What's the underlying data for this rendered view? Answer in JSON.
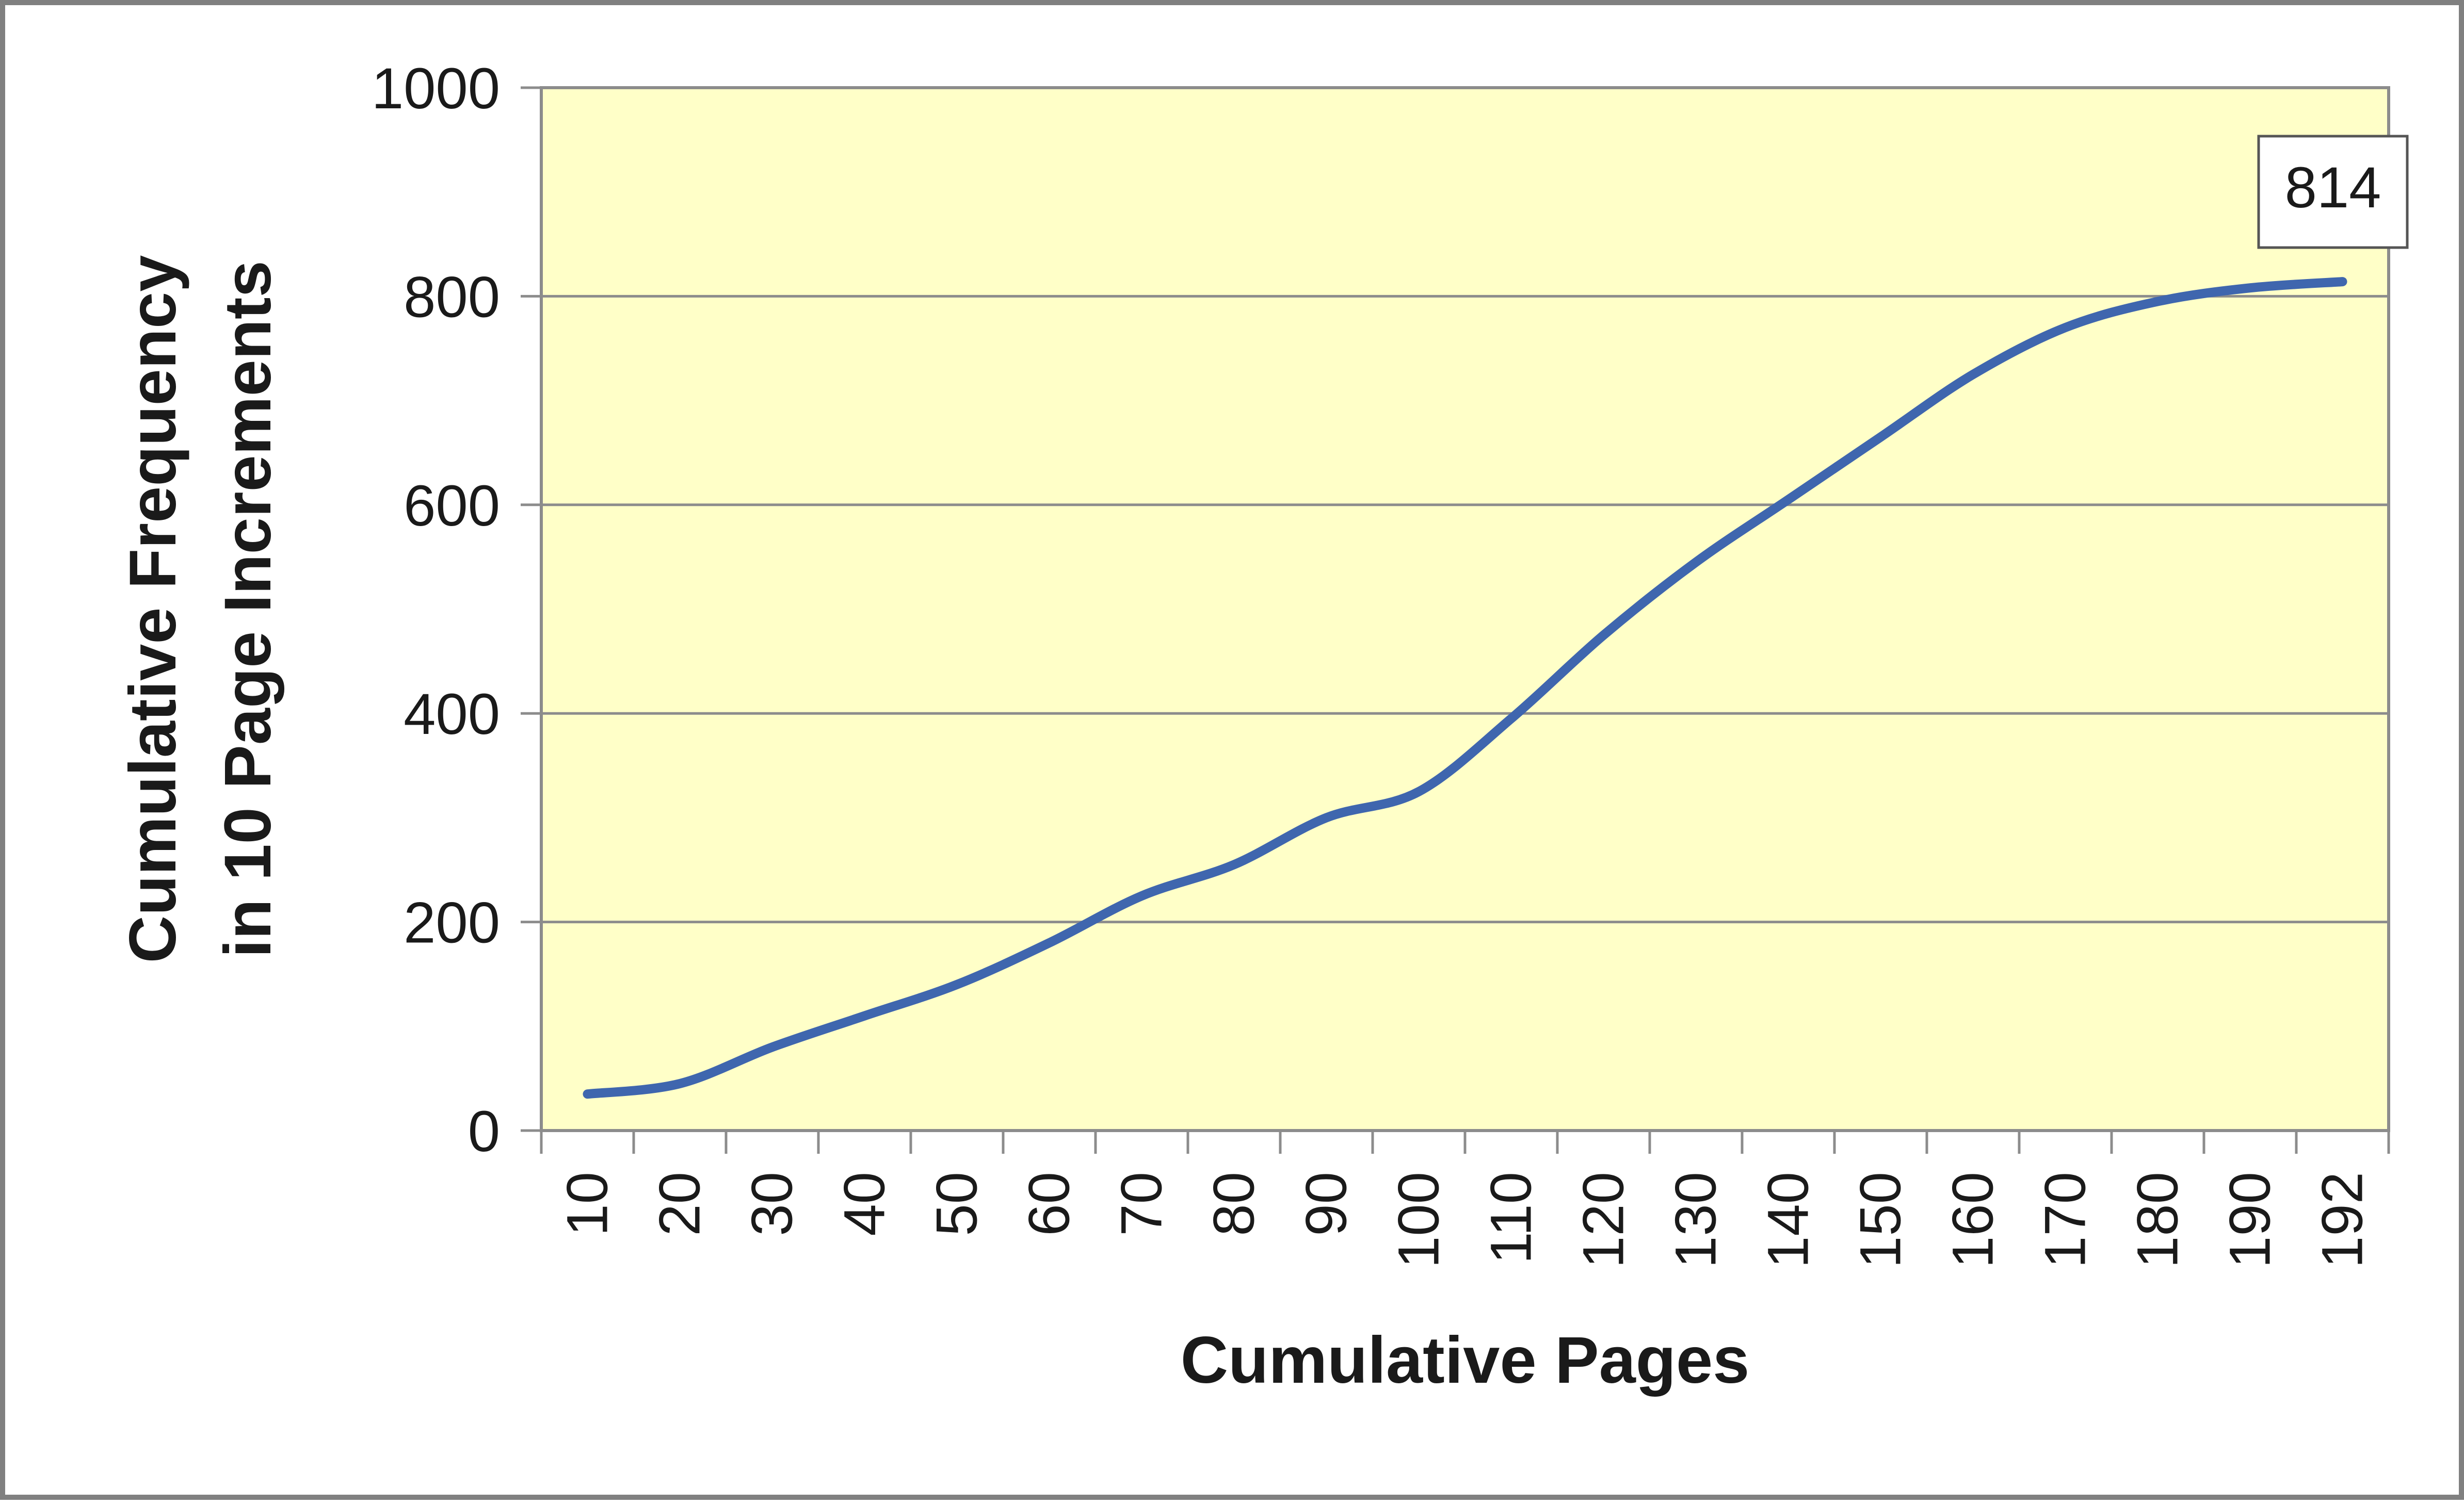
{
  "chart_data": {
    "type": "line",
    "title": "",
    "xlabel": "Cumulative Pages",
    "ylabel": [
      "Cumulative Frequency",
      "in 10 Page Increments"
    ],
    "ylim": [
      0,
      1000
    ],
    "y_ticks": [
      "0",
      "200",
      "400",
      "600",
      "800",
      "1000"
    ],
    "categories": [
      "10",
      "20",
      "30",
      "40",
      "50",
      "60",
      "70",
      "80",
      "90",
      "100",
      "110",
      "120",
      "130",
      "140",
      "150",
      "160",
      "170",
      "180",
      "190",
      "192"
    ],
    "values": [
      35,
      45,
      80,
      110,
      140,
      180,
      225,
      255,
      300,
      325,
      395,
      475,
      545,
      605,
      665,
      725,
      770,
      795,
      808,
      814
    ],
    "grid": true,
    "background_color": "#ffffc8",
    "line_color": "#3f66ae",
    "data_label": "814"
  }
}
